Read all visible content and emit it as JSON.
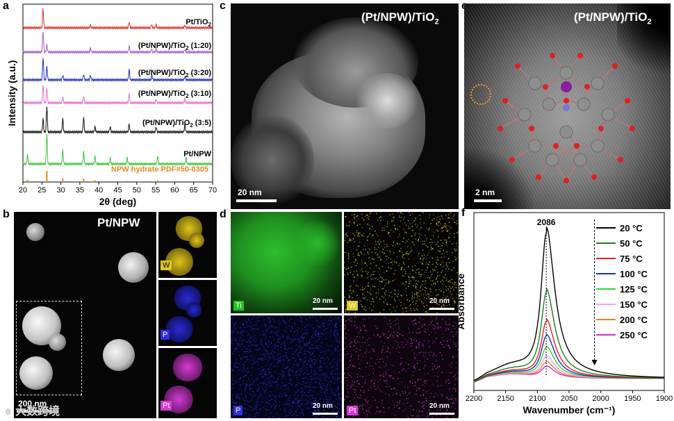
{
  "panels": {
    "a": {
      "label": "a",
      "ylabel": "Intensity (a.u.)",
      "xlabel": "2θ (deg)",
      "xticks": [
        "20",
        "25",
        "30",
        "35",
        "40",
        "45",
        "50",
        "55",
        "60",
        "65",
        "70"
      ],
      "traces": [
        {
          "name": "Pt/TiO2",
          "color": "#d9352b"
        },
        {
          "name": "(Pt/NPW)/TiO2 (1:20)",
          "color": "#a45cc8"
        },
        {
          "name": "(Pt/NPW)/TiO2 (3:20)",
          "color": "#2130b8"
        },
        {
          "name": "(Pt/NPW)/TiO2 (3:10)",
          "color": "#e070d6"
        },
        {
          "name": "(Pt/NPW)/TiO2 (3:5)",
          "color": "#111111"
        },
        {
          "name": "Pt/NPW",
          "color": "#3cc33c"
        },
        {
          "name": "NPW hydrate PDF#50-0305",
          "color": "#e08a1e"
        }
      ],
      "legend_labels": [
        {
          "base": "Pt/TiO",
          "sub": "2",
          "tail": ""
        },
        {
          "base": "(Pt/NPW)/TiO",
          "sub": "2",
          "tail": " (1:20)"
        },
        {
          "base": "(Pt/NPW)/TiO",
          "sub": "2",
          "tail": " (3:20)"
        },
        {
          "base": "(Pt/NPW)/TiO",
          "sub": "2",
          "tail": " (3:10)"
        },
        {
          "base": "(Pt/NPW)/TiO",
          "sub": "2",
          "tail": " (3:5)"
        },
        {
          "base": "Pt/NPW",
          "sub": "",
          "tail": ""
        },
        {
          "base": "NPW hydrate PDF#50-0305",
          "sub": "",
          "tail": ""
        }
      ]
    },
    "b": {
      "label": "b",
      "title": "Pt/NPW",
      "scalebar": "200 nm",
      "maps": [
        "W",
        "P",
        "Pt"
      ]
    },
    "c": {
      "label": "c",
      "title_base": "(Pt/NPW)/TiO",
      "title_sub": "2",
      "scalebar": "20 nm"
    },
    "d": {
      "label": "d",
      "maps": [
        "Ti",
        "W",
        "P",
        "Pt"
      ],
      "scalebar": "20 nm"
    },
    "e": {
      "label": "e",
      "title_base": "(Pt/NPW)/TiO",
      "title_sub": "2",
      "scalebar": "2 nm"
    },
    "f": {
      "label": "f",
      "ylabel": "Absorbance",
      "xlabel": "Wavenumber (cm⁻¹)",
      "peak_label": "2086"
    }
  },
  "watermark": "大数跨境",
  "map_colors": {
    "Ti": "#22c322",
    "W": "#e0c51a",
    "P": "#2f2fe0",
    "Pt": "#d43bd4"
  },
  "chart_data": [
    {
      "type": "line",
      "title": "",
      "xlabel": "2θ (deg)",
      "ylabel": "Intensity (a.u.)",
      "xlim": [
        20,
        70
      ],
      "series": [
        {
          "name": "Pt/TiO2",
          "peaks": [
            [
              25.3,
              1.0
            ],
            [
              37.8,
              0.15
            ],
            [
              48.0,
              0.3
            ],
            [
              53.9,
              0.17
            ],
            [
              55.1,
              0.17
            ],
            [
              62.7,
              0.12
            ]
          ]
        },
        {
          "name": "(Pt/NPW)/TiO2 (1:20)",
          "peaks": [
            [
              25.3,
              1.0
            ],
            [
              26.3,
              0.35
            ],
            [
              37.8,
              0.2
            ],
            [
              48.0,
              0.3
            ],
            [
              53.9,
              0.15
            ],
            [
              55.1,
              0.15
            ],
            [
              62.7,
              0.12
            ]
          ]
        },
        {
          "name": "(Pt/NPW)/TiO2 (3:20)",
          "peaks": [
            [
              25.3,
              1.0
            ],
            [
              26.3,
              0.6
            ],
            [
              30.5,
              0.2
            ],
            [
              36.0,
              0.25
            ],
            [
              37.8,
              0.2
            ],
            [
              48.0,
              0.45
            ],
            [
              54.0,
              0.2
            ],
            [
              62.7,
              0.15
            ]
          ]
        },
        {
          "name": "(Pt/NPW)/TiO2 (3:10)",
          "peaks": [
            [
              25.3,
              0.8
            ],
            [
              26.3,
              0.7
            ],
            [
              30.5,
              0.25
            ],
            [
              36.0,
              0.3
            ],
            [
              48.0,
              0.4
            ],
            [
              55.1,
              0.15
            ],
            [
              62.7,
              0.2
            ]
          ]
        },
        {
          "name": "(Pt/NPW)/TiO2 (3:5)",
          "peaks": [
            [
              25.3,
              0.5
            ],
            [
              26.3,
              1.0
            ],
            [
              30.5,
              0.5
            ],
            [
              36.0,
              0.55
            ],
            [
              39.0,
              0.2
            ],
            [
              43.0,
              0.2
            ],
            [
              48.0,
              0.3
            ],
            [
              55.1,
              0.2
            ],
            [
              62.7,
              0.3
            ]
          ]
        },
        {
          "name": "Pt/NPW",
          "peaks": [
            [
              21.2,
              0.3
            ],
            [
              26.3,
              1.0
            ],
            [
              30.5,
              0.45
            ],
            [
              36.0,
              0.4
            ],
            [
              39.0,
              0.25
            ],
            [
              43.0,
              0.2
            ],
            [
              47.5,
              0.2
            ],
            [
              55.5,
              0.25
            ],
            [
              63.0,
              0.2
            ]
          ]
        },
        {
          "name": "NPW hydrate PDF#50-0305",
          "sticks": [
            [
              21.2,
              0.2
            ],
            [
              26.3,
              1.0
            ],
            [
              30.5,
              0.35
            ],
            [
              36.0,
              0.3
            ],
            [
              39.0,
              0.15
            ],
            [
              47.5,
              0.1
            ],
            [
              55.5,
              0.15
            ]
          ]
        }
      ]
    },
    {
      "type": "line",
      "title": "",
      "xlabel": "Wavenumber (cm⁻¹)",
      "ylabel": "Absorbance",
      "xlim": [
        2200,
        1900
      ],
      "xticks": [
        2200,
        2150,
        2100,
        2050,
        2000,
        1950,
        1900
      ],
      "peak": 2086,
      "series": [
        {
          "name": "20 °C",
          "color": "#000000",
          "height": 1.0
        },
        {
          "name": "50 °C",
          "color": "#1f7d1f",
          "height": 0.59
        },
        {
          "name": "75 °C",
          "color": "#e02020",
          "height": 0.39
        },
        {
          "name": "100 °C",
          "color": "#1d2dbd",
          "height": 0.29
        },
        {
          "name": "125 °C",
          "color": "#33d633",
          "height": 0.21
        },
        {
          "name": "150 °C",
          "color": "#f0a0f0",
          "height": 0.15
        },
        {
          "name": "200 °C",
          "color": "#e0802a",
          "height": 0.11
        },
        {
          "name": "250 °C",
          "color": "#d22ad2",
          "height": 0.08
        }
      ]
    }
  ]
}
